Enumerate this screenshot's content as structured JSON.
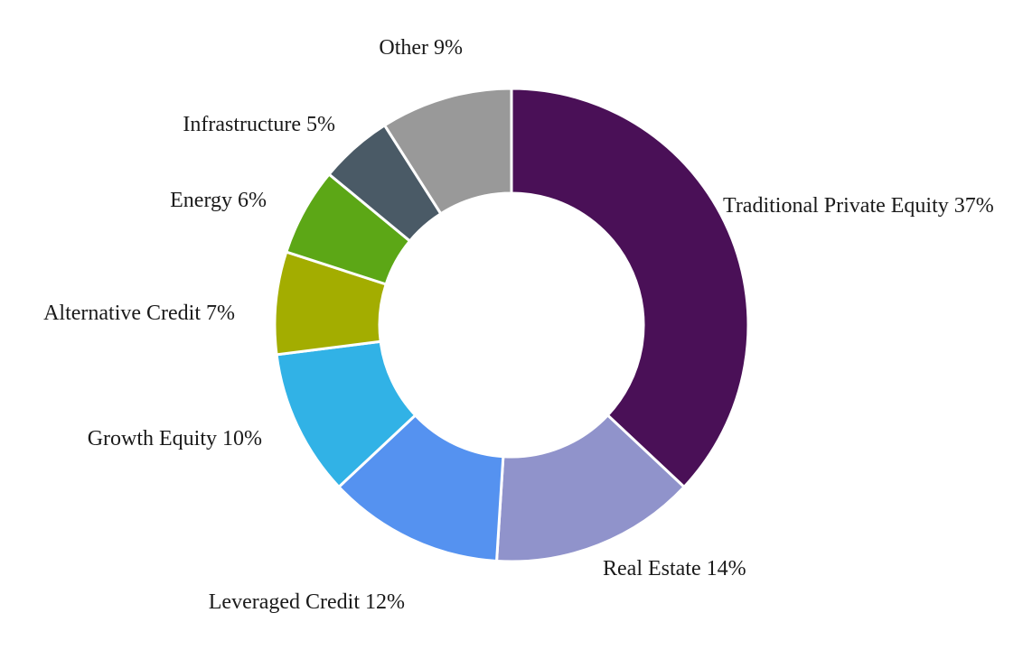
{
  "chart_data": {
    "type": "pie",
    "title": "",
    "donut": true,
    "legend": "none",
    "unit": "%",
    "slices": [
      {
        "label": "Traditional Private Equity",
        "value": 37,
        "color": "#4a1057",
        "text": "Traditional Private Equity 37%"
      },
      {
        "label": "Real Estate",
        "value": 14,
        "color": "#9093cb",
        "text": "Real Estate 14%"
      },
      {
        "label": "Leveraged Credit",
        "value": 12,
        "color": "#5592f0",
        "text": "Leveraged Credit 12%"
      },
      {
        "label": "Growth Equity",
        "value": 10,
        "color": "#31b2e6",
        "text": "Growth Equity 10%"
      },
      {
        "label": "Alternative Credit",
        "value": 7,
        "color": "#a3ad00",
        "text": "Alternative Credit 7%"
      },
      {
        "label": "Energy",
        "value": 6,
        "color": "#5ca716",
        "text": "Energy 6%"
      },
      {
        "label": "Infrastructure",
        "value": 5,
        "color": "#4a5a66",
        "text": "Infrastructure 5%"
      },
      {
        "label": "Other",
        "value": 9,
        "color": "#999999",
        "text": "Other 9%"
      }
    ]
  }
}
